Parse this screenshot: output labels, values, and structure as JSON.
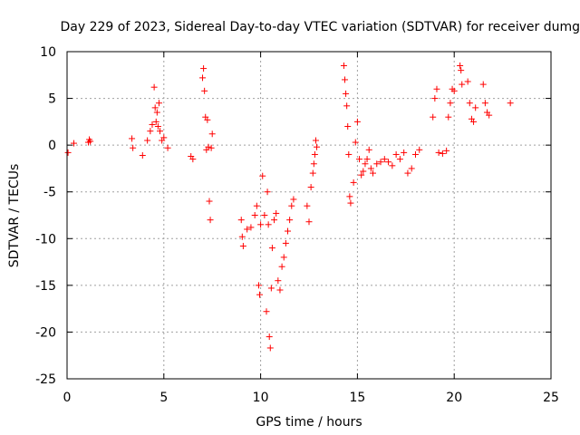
{
  "chart_data": {
    "type": "scatter",
    "title": "Day 229 of 2023, Sidereal Day-to-day VTEC variation (SDTVAR) for receiver dumg",
    "xlabel": "GPS time / hours",
    "ylabel": "SDTVAR / TECUs",
    "xlim": [
      0,
      25
    ],
    "ylim": [
      -25,
      10
    ],
    "xticks": [
      "0",
      "5",
      "10",
      "15",
      "20",
      "25"
    ],
    "yticks": [
      "10",
      "5",
      "0",
      "-5",
      "-10",
      "-15",
      "-20",
      "-25"
    ],
    "grid": true,
    "marker": "+",
    "color": "#ff0000",
    "series": [
      {
        "name": "dumg",
        "x": [
          0.05,
          0.35,
          1.1,
          1.15,
          1.2,
          3.35,
          3.4,
          3.9,
          4.15,
          4.3,
          4.4,
          4.5,
          4.55,
          4.6,
          4.65,
          4.7,
          4.75,
          4.8,
          4.9,
          5.0,
          5.2,
          6.4,
          6.5,
          7.0,
          7.05,
          7.1,
          7.15,
          7.2,
          7.25,
          7.3,
          7.35,
          7.4,
          7.45,
          7.5,
          9.0,
          9.05,
          9.1,
          9.3,
          9.5,
          9.7,
          9.8,
          9.9,
          9.95,
          10.0,
          10.1,
          10.2,
          10.3,
          10.35,
          10.4,
          10.45,
          10.5,
          10.55,
          10.6,
          10.7,
          10.8,
          10.9,
          11.0,
          11.1,
          11.2,
          11.3,
          11.4,
          11.5,
          11.6,
          11.7,
          12.4,
          12.5,
          12.6,
          12.7,
          12.75,
          12.8,
          12.85,
          12.9,
          14.3,
          14.35,
          14.4,
          14.45,
          14.5,
          14.55,
          14.6,
          14.65,
          14.8,
          14.9,
          15.0,
          15.1,
          15.2,
          15.3,
          15.4,
          15.5,
          15.6,
          15.7,
          15.8,
          16.0,
          16.2,
          16.4,
          16.6,
          16.8,
          17.0,
          17.2,
          17.4,
          17.6,
          17.8,
          18.0,
          18.2,
          18.9,
          19.0,
          19.1,
          19.2,
          19.4,
          19.6,
          19.7,
          19.8,
          19.9,
          20.0,
          20.3,
          20.35,
          20.4,
          20.7,
          20.8,
          20.9,
          21.0,
          21.1,
          21.5,
          21.6,
          21.7,
          21.8,
          22.9
        ],
        "y": [
          -0.8,
          0.2,
          0.3,
          0.6,
          0.4,
          0.7,
          -0.3,
          -1.1,
          0.5,
          1.5,
          2.2,
          6.2,
          4.0,
          2.5,
          3.5,
          2.0,
          4.5,
          1.5,
          0.5,
          0.8,
          -0.3,
          -1.2,
          -1.5,
          7.2,
          8.2,
          5.8,
          3.0,
          -0.5,
          2.7,
          -0.2,
          -6.0,
          -8.0,
          -0.3,
          1.2,
          -8.0,
          -9.8,
          -10.8,
          -9.0,
          -8.8,
          -7.5,
          -6.5,
          -15.0,
          -16.0,
          -8.5,
          -3.3,
          -7.5,
          -17.8,
          -5.0,
          -8.5,
          -20.5,
          -21.7,
          -15.3,
          -11.0,
          -8.0,
          -7.3,
          -14.5,
          -15.5,
          -13.0,
          -12.0,
          -10.5,
          -9.2,
          -8.0,
          -6.5,
          -5.8,
          -6.5,
          -8.2,
          -4.5,
          -3.0,
          -2.0,
          -1.0,
          0.5,
          -0.2,
          8.5,
          7.0,
          5.5,
          4.2,
          2.0,
          -1.0,
          -5.5,
          -6.2,
          -4.0,
          0.3,
          2.5,
          -1.5,
          -3.2,
          -2.8,
          -2.0,
          -1.5,
          -0.5,
          -2.5,
          -3.0,
          -2.0,
          -1.8,
          -1.5,
          -1.8,
          -2.2,
          -1.0,
          -1.5,
          -0.8,
          -3.0,
          -2.5,
          -1.0,
          -0.5,
          3.0,
          5.0,
          6.0,
          -0.8,
          -0.9,
          -0.6,
          3.0,
          4.5,
          6.0,
          5.8,
          8.5,
          8.0,
          6.5,
          6.8,
          4.5,
          2.8,
          2.5,
          4.0,
          6.5,
          4.5,
          3.5,
          3.2,
          4.5
        ]
      }
    ]
  }
}
